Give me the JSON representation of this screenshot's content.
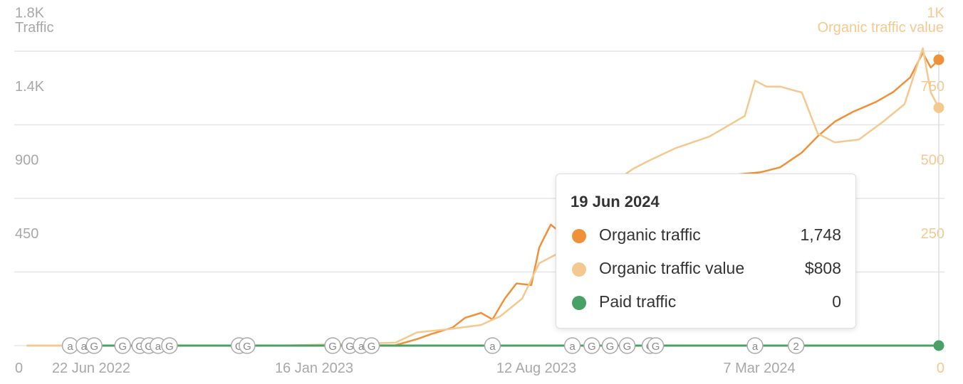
{
  "chart_data": {
    "type": "line",
    "ylabel_left": "Traffic",
    "ylabel_right": "Organic traffic value",
    "y_left_ticks": [
      "0",
      "450",
      "900",
      "1.4K",
      "1.8K"
    ],
    "y_left_range": [
      0,
      1800
    ],
    "y_right_ticks": [
      "0",
      "250",
      "500",
      "750",
      "1K"
    ],
    "y_right_range": [
      0,
      1000
    ],
    "x_tick_labels": [
      "22 Jun 2022",
      "16 Jan 2023",
      "12 Aug 2023",
      "7 Mar 2024"
    ],
    "x_range": [
      "2022-04-01",
      "2024-06-24"
    ],
    "grid": true,
    "colors": {
      "organic_traffic": "#f0913a",
      "organic_traffic_value": "#f4c98f",
      "paid_traffic": "#4aa165",
      "grid": "#e6e6e6",
      "left_axis_text": "#a8a8a8",
      "right_axis_text": "#f4c98f"
    },
    "series": [
      {
        "key": "organic_traffic",
        "axis": "left",
        "points": [
          [
            "2022-04-12",
            0
          ],
          [
            "2022-11-20",
            0
          ],
          [
            "2023-03-01",
            2
          ],
          [
            "2023-03-20",
            40
          ],
          [
            "2023-04-01",
            70
          ],
          [
            "2023-04-20",
            110
          ],
          [
            "2023-05-01",
            170
          ],
          [
            "2023-05-15",
            200
          ],
          [
            "2023-05-25",
            160
          ],
          [
            "2023-06-05",
            290
          ],
          [
            "2023-06-15",
            380
          ],
          [
            "2023-06-28",
            370
          ],
          [
            "2023-07-05",
            600
          ],
          [
            "2023-07-15",
            740
          ],
          [
            "2023-07-22",
            700
          ],
          [
            "2023-08-01",
            700
          ],
          [
            "2023-08-10",
            720
          ],
          [
            "2023-08-20",
            760
          ],
          [
            "2023-09-01",
            800
          ],
          [
            "2023-09-10",
            860
          ],
          [
            "2023-10-01",
            940
          ],
          [
            "2023-11-01",
            1000
          ],
          [
            "2023-12-01",
            1030
          ],
          [
            "2024-01-15",
            1060
          ],
          [
            "2024-02-01",
            1090
          ],
          [
            "2024-02-20",
            1180
          ],
          [
            "2024-03-05",
            1280
          ],
          [
            "2024-03-20",
            1370
          ],
          [
            "2024-04-05",
            1430
          ],
          [
            "2024-04-25",
            1490
          ],
          [
            "2024-05-10",
            1550
          ],
          [
            "2024-05-25",
            1640
          ],
          [
            "2024-06-05",
            1790
          ],
          [
            "2024-06-12",
            1700
          ],
          [
            "2024-06-19",
            1748
          ]
        ]
      },
      {
        "key": "organic_traffic_value",
        "axis": "right",
        "points": [
          [
            "2022-04-12",
            0
          ],
          [
            "2022-11-20",
            0
          ],
          [
            "2023-03-01",
            10
          ],
          [
            "2023-03-20",
            45
          ],
          [
            "2023-04-15",
            55
          ],
          [
            "2023-05-15",
            70
          ],
          [
            "2023-06-01",
            100
          ],
          [
            "2023-06-20",
            160
          ],
          [
            "2023-07-05",
            280
          ],
          [
            "2023-07-25",
            320
          ],
          [
            "2023-08-10",
            340
          ],
          [
            "2023-08-25",
            370
          ],
          [
            "2023-09-03",
            540
          ],
          [
            "2023-09-25",
            600
          ],
          [
            "2023-10-10",
            630
          ],
          [
            "2023-11-01",
            670
          ],
          [
            "2023-12-01",
            710
          ],
          [
            "2024-01-01",
            780
          ],
          [
            "2024-01-10",
            900
          ],
          [
            "2024-01-20",
            880
          ],
          [
            "2024-02-01",
            880
          ],
          [
            "2024-02-10",
            870
          ],
          [
            "2024-02-20",
            860
          ],
          [
            "2024-03-05",
            720
          ],
          [
            "2024-03-20",
            690
          ],
          [
            "2024-04-10",
            700
          ],
          [
            "2024-05-01",
            760
          ],
          [
            "2024-05-20",
            820
          ],
          [
            "2024-06-05",
            1010
          ],
          [
            "2024-06-12",
            860
          ],
          [
            "2024-06-19",
            808
          ]
        ]
      },
      {
        "key": "paid_traffic",
        "axis": "left",
        "points": [
          [
            "2022-05-20",
            0
          ],
          [
            "2024-06-19",
            0
          ]
        ]
      }
    ],
    "annotations": [
      {
        "date": "2022-05-20",
        "label": "a"
      },
      {
        "date": "2022-06-01",
        "label": "a"
      },
      {
        "date": "2022-06-10",
        "label": "G"
      },
      {
        "date": "2022-07-05",
        "label": "G"
      },
      {
        "date": "2022-07-20",
        "label": "G"
      },
      {
        "date": "2022-07-28",
        "label": "G"
      },
      {
        "date": "2022-08-05",
        "label": "a"
      },
      {
        "date": "2022-08-15",
        "label": "G"
      },
      {
        "date": "2022-10-15",
        "label": "G"
      },
      {
        "date": "2022-10-22",
        "label": "G"
      },
      {
        "date": "2023-01-05",
        "label": "G"
      },
      {
        "date": "2023-01-20",
        "label": "G"
      },
      {
        "date": "2023-01-30",
        "label": "a"
      },
      {
        "date": "2023-02-08",
        "label": "G"
      },
      {
        "date": "2023-05-25",
        "label": "a"
      },
      {
        "date": "2023-08-03",
        "label": "a"
      },
      {
        "date": "2023-08-20",
        "label": "G"
      },
      {
        "date": "2023-09-05",
        "label": "G"
      },
      {
        "date": "2023-09-20",
        "label": "G"
      },
      {
        "date": "2023-10-10",
        "label": "G"
      },
      {
        "date": "2023-10-15",
        "label": "G"
      },
      {
        "date": "2024-01-10",
        "label": "a"
      },
      {
        "date": "2024-02-15",
        "label": "2"
      }
    ]
  },
  "tooltip": {
    "date": "19 Jun 2024",
    "rows": [
      {
        "label": "Organic traffic",
        "value": "1,748",
        "color": "#f0913a"
      },
      {
        "label": "Organic traffic value",
        "value": "$808",
        "color": "#f4c98f"
      },
      {
        "label": "Paid traffic",
        "value": "0",
        "color": "#4aa165"
      }
    ]
  }
}
